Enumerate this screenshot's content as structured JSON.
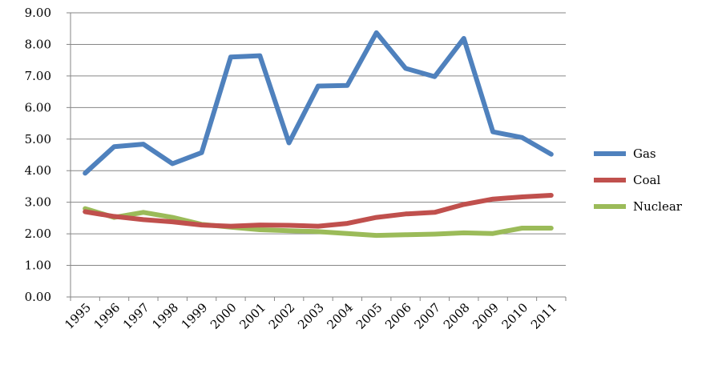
{
  "chart_data": {
    "type": "line",
    "title": "",
    "xlabel": "",
    "ylabel": "",
    "ylim": [
      0,
      9
    ],
    "yticks": [
      "0.00",
      "1.00",
      "2.00",
      "3.00",
      "4.00",
      "5.00",
      "6.00",
      "7.00",
      "8.00",
      "9.00"
    ],
    "grid": "horizontal",
    "legend_position": "right",
    "categories": [
      "1995",
      "1996",
      "1997",
      "1998",
      "1999",
      "2000",
      "2001",
      "2002",
      "2003",
      "2004",
      "2005",
      "2006",
      "2007",
      "2008",
      "2009",
      "2010",
      "2011"
    ],
    "series": [
      {
        "name": "Gas",
        "color": "#4f81bd",
        "values": [
          3.92,
          4.76,
          4.84,
          4.22,
          4.57,
          7.6,
          7.64,
          4.88,
          6.68,
          6.7,
          8.37,
          7.24,
          6.98,
          8.19,
          5.23,
          5.05,
          4.52
        ]
      },
      {
        "name": "Coal",
        "color": "#c0504d",
        "values": [
          2.7,
          2.55,
          2.45,
          2.38,
          2.28,
          2.24,
          2.28,
          2.27,
          2.24,
          2.33,
          2.52,
          2.63,
          2.68,
          2.93,
          3.1,
          3.17,
          3.22
        ]
      },
      {
        "name": "Nuclear",
        "color": "#9bbb59",
        "values": [
          2.8,
          2.52,
          2.68,
          2.52,
          2.3,
          2.21,
          2.13,
          2.1,
          2.07,
          2.01,
          1.95,
          1.97,
          1.99,
          2.03,
          2.01,
          2.18,
          2.18
        ]
      }
    ]
  }
}
